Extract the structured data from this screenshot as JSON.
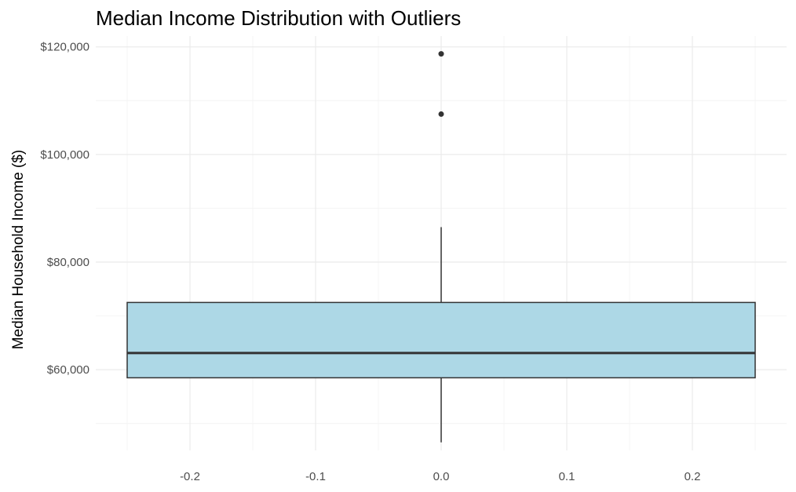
{
  "chart_data": {
    "type": "boxplot",
    "title": "Median Income Distribution with Outliers",
    "xlabel": "",
    "ylabel": "Median Household Income ($)",
    "x_ticks": [
      "-0.2",
      "-0.1",
      "0.0",
      "0.1",
      "0.2"
    ],
    "x_tick_values": [
      -0.2,
      -0.1,
      0.0,
      0.1,
      0.2
    ],
    "xlim": [
      -0.275,
      0.275
    ],
    "ylim": [
      45000,
      122000
    ],
    "y_ticks": [
      "$60,000",
      "$80,000",
      "$100,000",
      "$120,000"
    ],
    "y_tick_values": [
      60000,
      80000,
      100000,
      120000
    ],
    "grid": true,
    "box": {
      "x_center": 0.0,
      "x_left": -0.25,
      "x_right": 0.25,
      "whisker_low": 46500,
      "q1": 58500,
      "median": 63100,
      "q3": 72500,
      "whisker_high": 86500
    },
    "outliers": [
      {
        "x": 0.0,
        "y": 107500
      },
      {
        "x": 0.0,
        "y": 118700
      }
    ],
    "colors": {
      "box_fill": "#add8e6",
      "box_stroke": "#333333",
      "outlier": "#333333",
      "grid_major": "#ebebeb",
      "grid_minor": "#f4f4f4"
    }
  }
}
